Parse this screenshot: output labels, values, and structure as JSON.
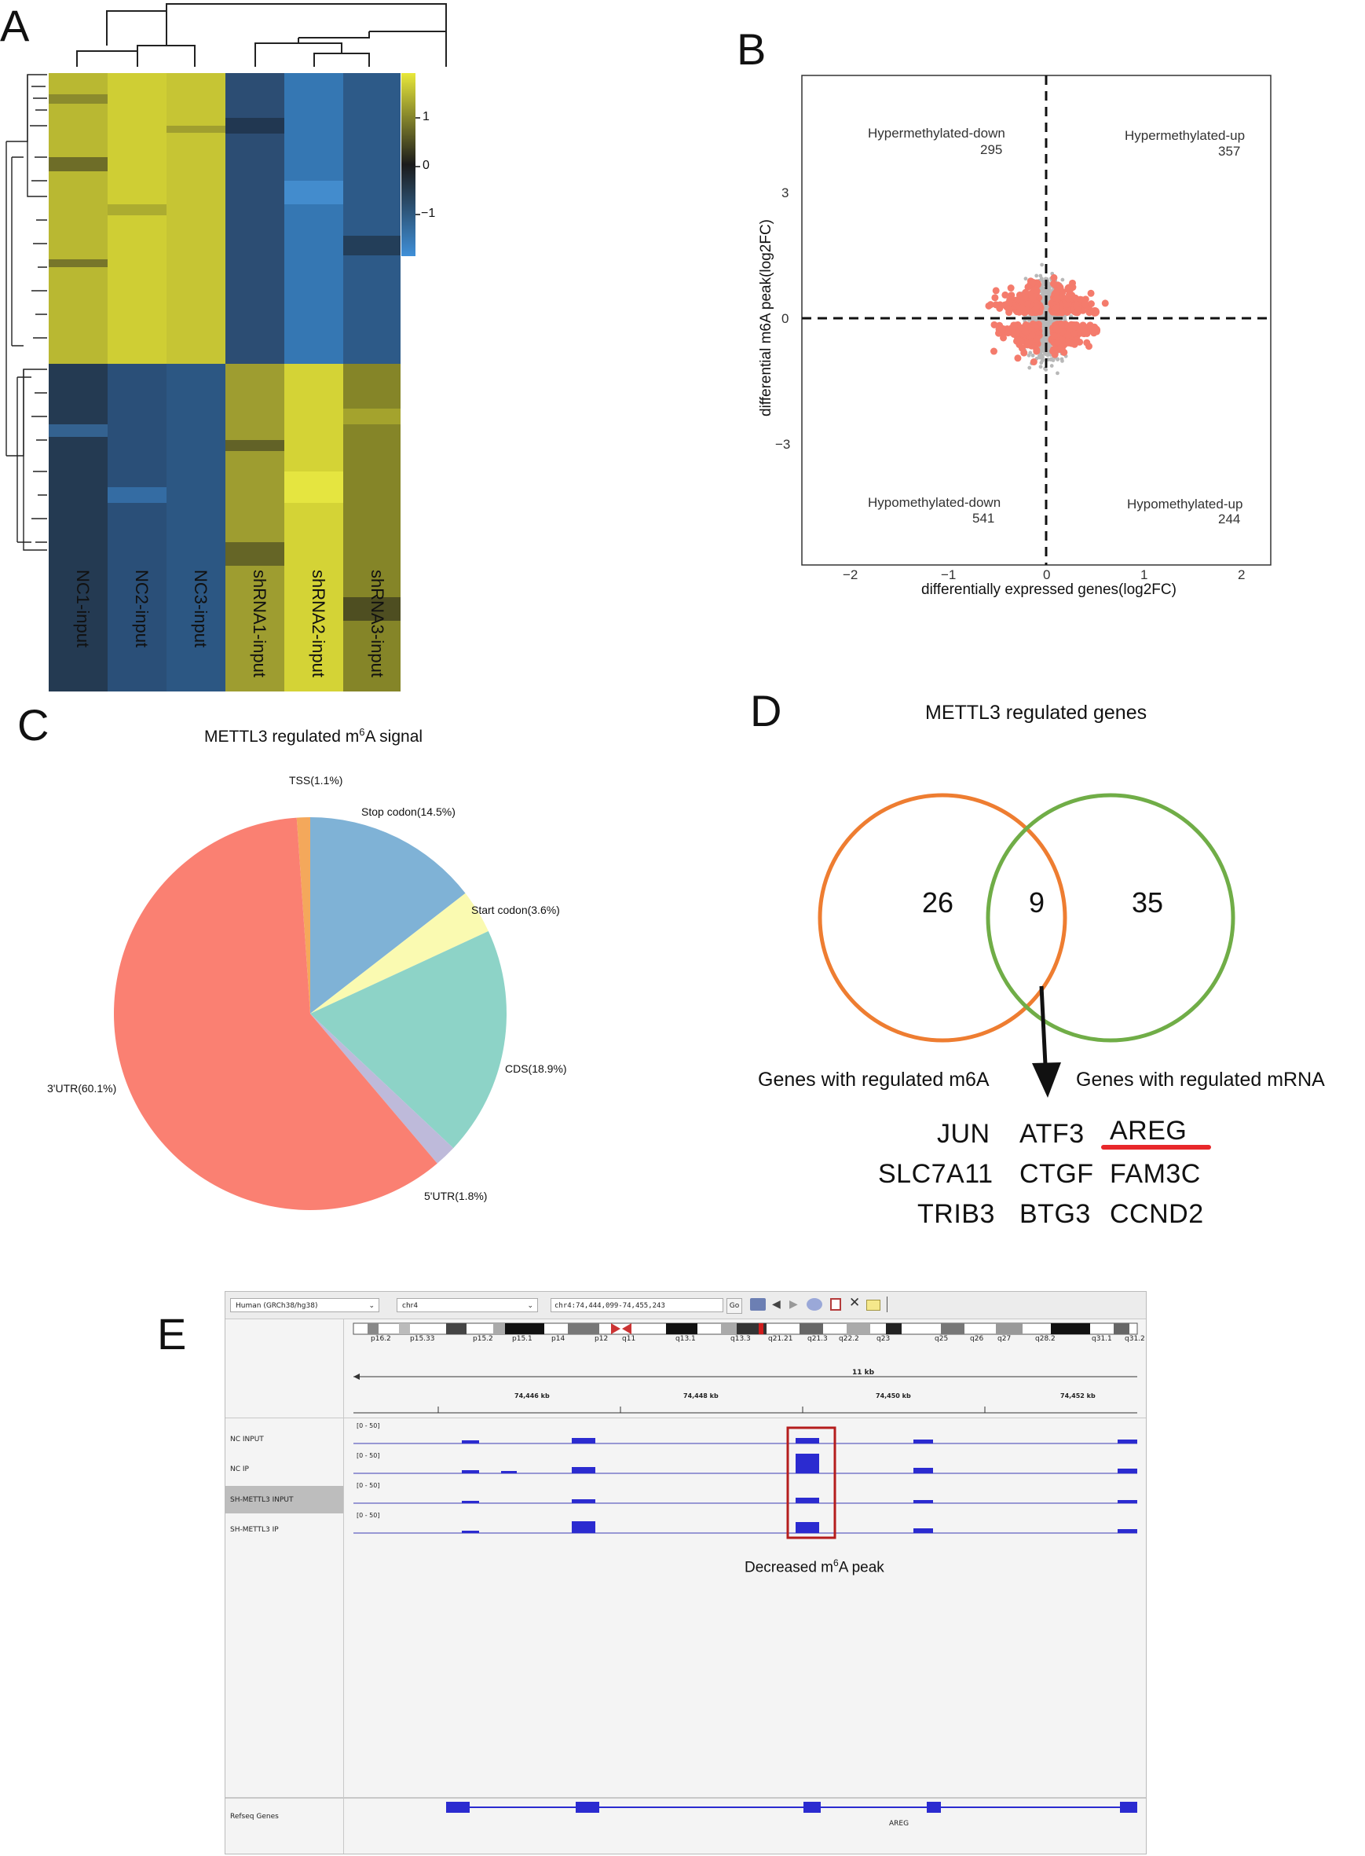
{
  "panels": {
    "A": "A",
    "B": "B",
    "C": "C",
    "D": "D",
    "E": "E"
  },
  "heatmap": {
    "samples": [
      "NC1-input",
      "NC2-input",
      "NC3-input",
      "shRNA1-input",
      "shRNA2-input",
      "shRNA3-input"
    ],
    "colorbar_ticks": [
      "1",
      "0",
      "−1"
    ],
    "colors": {
      "high": "#e8e83a",
      "mid": "#1b1b1b",
      "low": "#3f8fd8"
    }
  },
  "scatter": {
    "xlabel": "differentially expressed genes(log2FC)",
    "ylabel": "differential m6A peak(log2FC)",
    "xticks": [
      "−2",
      "−1",
      "0",
      "1",
      "2"
    ],
    "yticks": [
      "3",
      "0",
      "−3"
    ],
    "quadrants": [
      {
        "label": "Hypermethylated-down",
        "count": "295"
      },
      {
        "label": "Hypermethylated-up",
        "count": "357"
      },
      {
        "label": "Hypomethylated-down",
        "count": "541"
      },
      {
        "label": "Hypomethylated-up",
        "count": "244"
      }
    ],
    "colors": {
      "sig": "#f47b6c",
      "nonsig": "#b8b8b8"
    }
  },
  "chart_data": {
    "type": "pie",
    "title_prefix": "METTL3 regulated m",
    "title_sup": "6",
    "title_suffix": "A signal",
    "slices": [
      {
        "label": "TSS(1.1%)",
        "value": 1.1,
        "color": "#f4a85b"
      },
      {
        "label": "Stop codon(14.5%)",
        "value": 14.5,
        "color": "#7fb2d6"
      },
      {
        "label": "Start codon(3.6%)",
        "value": 3.6,
        "color": "#fafab1"
      },
      {
        "label": "CDS(18.9%)",
        "value": 18.9,
        "color": "#8dd3c7"
      },
      {
        "label": "5'UTR(1.8%)",
        "value": 1.8,
        "color": "#bebada"
      },
      {
        "label": "3'UTR(60.1%)",
        "value": 60.1,
        "color": "#fa8072"
      }
    ]
  },
  "venn": {
    "title": "METTL3 regulated genes",
    "left_only": "26",
    "overlap": "9",
    "right_only": "35",
    "left_label": "Genes with regulated m6A",
    "right_label": "Genes with regulated mRNA",
    "genes": [
      [
        "JUN",
        "ATF3",
        "AREG"
      ],
      [
        "SLC7A11",
        "CTGF",
        "FAM3C"
      ],
      [
        "TRIB3",
        "BTG3",
        "CCND2"
      ]
    ],
    "colors": {
      "left": "#ee7d31",
      "right": "#70ad47",
      "underline": "#e8282b"
    }
  },
  "igv": {
    "genome": "Human (GRCh38/hg38)",
    "chrom": "chr4",
    "locus": "chr4:74,444,099-74,455,243",
    "go": "Go",
    "bands": [
      "p16.2",
      "p15.33",
      "p15.2",
      "p15.1",
      "p14",
      "p12",
      "q11",
      "q13.1",
      "q13.3",
      "q21.21",
      "q21.3",
      "q22.2",
      "q23",
      "q25",
      "q26",
      "q27",
      "q28.2",
      "q31.1",
      "q31.2"
    ],
    "span": "11 kb",
    "ruler": [
      "74,446 kb",
      "74,448 kb",
      "74,450 kb",
      "74,452 kb"
    ],
    "tracks": [
      "NC INPUT",
      "NC IP",
      "SH-METTL3 INPUT",
      "SH-METTL3 IP"
    ],
    "range": "[0 - 50]",
    "refseq_label": "Refseq Genes",
    "gene_name": "AREG",
    "annotation_prefix": "Decreased m",
    "annotation_sup": "6",
    "annotation_suffix": "A peak"
  }
}
